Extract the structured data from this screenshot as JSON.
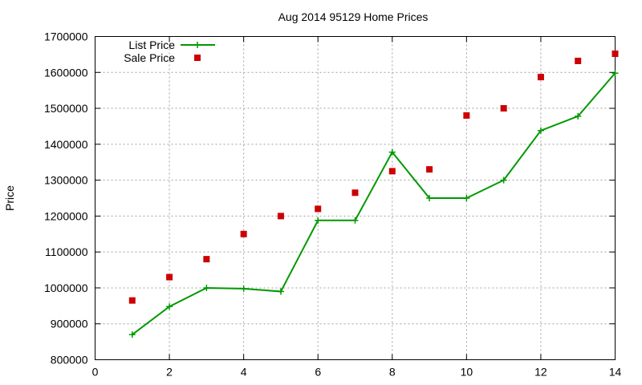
{
  "chart_data": {
    "type": "line",
    "title": "Aug 2014 95129 Home Prices",
    "xlabel": "",
    "ylabel": "Price",
    "xlim": [
      0,
      14
    ],
    "ylim": [
      800000,
      1700000
    ],
    "xticks": [
      0,
      2,
      4,
      6,
      8,
      10,
      12,
      14
    ],
    "yticks": [
      800000,
      900000,
      1000000,
      1100000,
      1200000,
      1300000,
      1400000,
      1500000,
      1600000,
      1700000
    ],
    "grid": true,
    "legend_position": "top-left",
    "series": [
      {
        "name": "List Price",
        "style": "line-plus",
        "color": "#009900",
        "points": [
          [
            1,
            870000
          ],
          [
            2,
            948000
          ],
          [
            3,
            1000000
          ],
          [
            4,
            998000
          ],
          [
            5,
            990000
          ],
          [
            6,
            1188000
          ],
          [
            7,
            1188000
          ],
          [
            8,
            1378000
          ],
          [
            9,
            1250000
          ],
          [
            10,
            1250000
          ],
          [
            11,
            1300000
          ],
          [
            12,
            1438000
          ],
          [
            13,
            1478000
          ],
          [
            14,
            1598000
          ]
        ]
      },
      {
        "name": "Sale Price",
        "style": "square",
        "color": "#cc0000",
        "points": [
          [
            1,
            965000
          ],
          [
            2,
            1030000
          ],
          [
            3,
            1080000
          ],
          [
            4,
            1150000
          ],
          [
            5,
            1200000
          ],
          [
            6,
            1220000
          ],
          [
            7,
            1265000
          ],
          [
            8,
            1325000
          ],
          [
            9,
            1330000
          ],
          [
            10,
            1480000
          ],
          [
            11,
            1500000
          ],
          [
            12,
            1587000
          ],
          [
            13,
            1632000
          ],
          [
            14,
            1652000
          ]
        ]
      }
    ]
  }
}
